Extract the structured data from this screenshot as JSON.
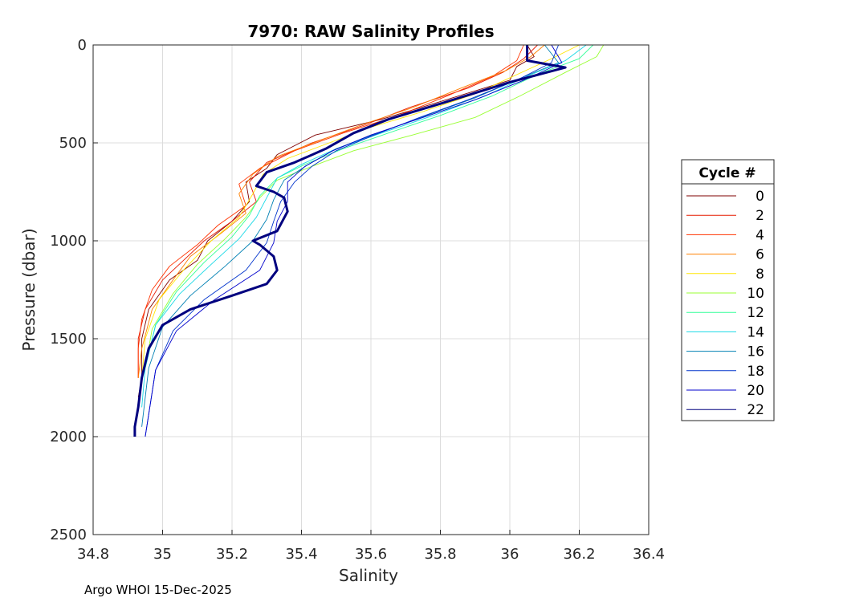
{
  "chart_data": {
    "type": "line",
    "title": "7970: RAW Salinity Profiles",
    "xlabel": "Salinity",
    "ylabel": "Pressure (dbar)",
    "xlim": [
      34.8,
      36.4
    ],
    "ylim": [
      0,
      2500
    ],
    "y_reversed": true,
    "grid": true,
    "xticks": [
      34.8,
      35,
      35.2,
      35.4,
      35.6,
      35.8,
      36,
      36.2,
      36.4
    ],
    "xtick_labels": [
      "34.8",
      "35",
      "35.2",
      "35.4",
      "35.6",
      "35.8",
      "36",
      "36.2",
      "36.4"
    ],
    "yticks": [
      0,
      500,
      1000,
      1500,
      2000,
      2500
    ],
    "ytick_labels": [
      "0",
      "500",
      "1000",
      "1500",
      "2000",
      "2500"
    ],
    "legend": {
      "title": "Cycle #",
      "placement": "right",
      "entries": [
        {
          "label": "0",
          "color": "#7f0000"
        },
        {
          "label": "2",
          "color": "#e61a00"
        },
        {
          "label": "4",
          "color": "#ff3300"
        },
        {
          "label": "6",
          "color": "#ff8000"
        },
        {
          "label": "8",
          "color": "#ffe600"
        },
        {
          "label": "10",
          "color": "#99ff33"
        },
        {
          "label": "12",
          "color": "#33ff99"
        },
        {
          "label": "14",
          "color": "#1ad9e6"
        },
        {
          "label": "16",
          "color": "#0080b3"
        },
        {
          "label": "18",
          "color": "#0033cc"
        },
        {
          "label": "20",
          "color": "#0000cc"
        },
        {
          "label": "22",
          "color": "#00007f"
        }
      ]
    },
    "series": [
      {
        "name": "0",
        "color": "#7f0000",
        "width": 0.9,
        "salinity": [
          36.05,
          36.07,
          36.02,
          36.0,
          35.78,
          35.63,
          35.44,
          35.33,
          35.3,
          35.24,
          35.25,
          35.2,
          35.13,
          35.1,
          35.02,
          34.96,
          34.94,
          34.94,
          34.93
        ],
        "pressure": [
          0,
          60,
          110,
          180,
          300,
          380,
          460,
          560,
          630,
          700,
          800,
          900,
          1000,
          1100,
          1200,
          1350,
          1500,
          1700,
          1800
        ]
      },
      {
        "name": "2",
        "color": "#e61a00",
        "width": 0.9,
        "salinity": [
          36.08,
          36.04,
          35.98,
          35.88,
          35.71,
          35.58,
          35.43,
          35.3,
          35.25,
          35.27,
          35.2,
          35.12,
          35.06,
          35.0,
          34.95,
          34.93,
          34.93
        ],
        "pressure": [
          0,
          70,
          140,
          220,
          320,
          410,
          500,
          600,
          700,
          800,
          900,
          1000,
          1100,
          1200,
          1350,
          1500,
          1700
        ]
      },
      {
        "name": "4",
        "color": "#ff3300",
        "width": 0.9,
        "salinity": [
          36.04,
          36.02,
          35.95,
          35.82,
          35.68,
          35.52,
          35.38,
          35.28,
          35.22,
          35.24,
          35.16,
          35.1,
          35.02,
          34.97,
          34.94,
          34.93,
          34.93
        ],
        "pressure": [
          0,
          80,
          160,
          260,
          360,
          450,
          540,
          630,
          710,
          820,
          920,
          1020,
          1130,
          1250,
          1400,
          1550,
          1700
        ]
      },
      {
        "name": "6",
        "color": "#ff8000",
        "width": 0.9,
        "salinity": [
          36.1,
          36.06,
          35.99,
          35.86,
          35.72,
          35.57,
          35.45,
          35.33,
          35.26,
          35.22,
          35.24,
          35.17,
          35.08,
          35.03,
          34.97,
          34.94,
          34.93
        ],
        "pressure": [
          0,
          60,
          130,
          220,
          320,
          410,
          490,
          570,
          660,
          760,
          860,
          960,
          1080,
          1200,
          1350,
          1550,
          1700
        ]
      },
      {
        "name": "8",
        "color": "#ffe600",
        "width": 0.9,
        "salinity": [
          36.2,
          36.12,
          36.01,
          35.9,
          35.75,
          35.6,
          35.48,
          35.36,
          35.29,
          35.26,
          35.22,
          35.14,
          35.06,
          34.99,
          34.95,
          34.94
        ],
        "pressure": [
          0,
          70,
          160,
          250,
          340,
          420,
          500,
          580,
          660,
          760,
          880,
          1000,
          1150,
          1300,
          1500,
          1700
        ]
      },
      {
        "name": "10",
        "color": "#99ff33",
        "width": 0.9,
        "salinity": [
          36.27,
          36.25,
          36.16,
          36.03,
          35.9,
          35.72,
          35.55,
          35.43,
          35.33,
          35.28,
          35.24,
          35.18,
          35.1,
          35.03,
          34.97,
          34.95
        ],
        "pressure": [
          0,
          60,
          140,
          260,
          370,
          460,
          540,
          620,
          690,
          780,
          880,
          990,
          1120,
          1270,
          1450,
          1650
        ]
      },
      {
        "name": "12",
        "color": "#33ff99",
        "width": 0.9,
        "salinity": [
          36.24,
          36.2,
          36.08,
          35.95,
          35.8,
          35.65,
          35.52,
          35.41,
          35.33,
          35.28,
          35.25,
          35.2,
          35.12,
          35.04,
          34.98,
          34.95
        ],
        "pressure": [
          0,
          70,
          150,
          260,
          360,
          450,
          530,
          610,
          680,
          770,
          870,
          980,
          1110,
          1260,
          1430,
          1650
        ]
      },
      {
        "name": "14",
        "color": "#1ad9e6",
        "width": 0.9,
        "salinity": [
          36.22,
          36.16,
          36.05,
          35.93,
          35.78,
          35.63,
          35.5,
          35.4,
          35.33,
          35.3,
          35.27,
          35.22,
          35.14,
          35.05,
          34.98,
          34.95,
          34.94
        ],
        "pressure": [
          0,
          80,
          160,
          260,
          360,
          450,
          530,
          610,
          680,
          780,
          880,
          990,
          1120,
          1270,
          1430,
          1650,
          1850
        ]
      },
      {
        "name": "16",
        "color": "#0080b3",
        "width": 0.9,
        "salinity": [
          36.1,
          36.14,
          36.03,
          35.9,
          35.76,
          35.62,
          35.5,
          35.42,
          35.35,
          35.32,
          35.3,
          35.26,
          35.18,
          35.08,
          35.0,
          34.96,
          34.94
        ],
        "pressure": [
          0,
          90,
          170,
          270,
          360,
          450,
          530,
          610,
          690,
          790,
          890,
          1000,
          1130,
          1280,
          1440,
          1650,
          1950
        ]
      },
      {
        "name": "18",
        "color": "#0033cc",
        "width": 0.9,
        "salinity": [
          36.14,
          36.12,
          36.02,
          35.88,
          35.74,
          35.61,
          35.5,
          35.43,
          35.38,
          35.34,
          35.32,
          35.3,
          35.24,
          35.12,
          35.03,
          34.98,
          34.95
        ],
        "pressure": [
          0,
          90,
          180,
          280,
          370,
          460,
          540,
          620,
          700,
          800,
          900,
          1010,
          1150,
          1300,
          1460,
          1660,
          2000
        ]
      },
      {
        "name": "20",
        "color": "#0000cc",
        "width": 0.9,
        "salinity": [
          36.12,
          36.15,
          36.04,
          35.9,
          35.75,
          35.6,
          35.49,
          35.41,
          35.36,
          35.36,
          35.33,
          35.32,
          35.28,
          35.15,
          35.04,
          34.98,
          34.95
        ],
        "pressure": [
          0,
          90,
          180,
          280,
          370,
          460,
          540,
          620,
          700,
          800,
          900,
          1010,
          1150,
          1300,
          1460,
          1660,
          2000
        ]
      },
      {
        "name": "22",
        "color": "#00007f",
        "width": 3,
        "salinity": [
          36.05,
          36.05,
          36.16,
          36.0,
          35.8,
          35.65,
          35.55,
          35.47,
          35.38,
          35.3,
          35.27,
          35.32,
          35.35,
          35.36,
          35.33,
          35.26,
          35.28,
          35.32,
          35.33,
          35.3,
          35.2,
          35.08,
          35.0,
          34.96,
          34.94,
          34.93,
          34.92,
          34.92
        ],
        "pressure": [
          0,
          80,
          115,
          190,
          300,
          380,
          450,
          530,
          600,
          650,
          720,
          750,
          780,
          850,
          950,
          1000,
          1020,
          1080,
          1150,
          1220,
          1280,
          1350,
          1430,
          1550,
          1700,
          1850,
          1950,
          2000
        ]
      }
    ]
  },
  "footer": {
    "text": "Argo WHOI 15-Dec-2025"
  }
}
